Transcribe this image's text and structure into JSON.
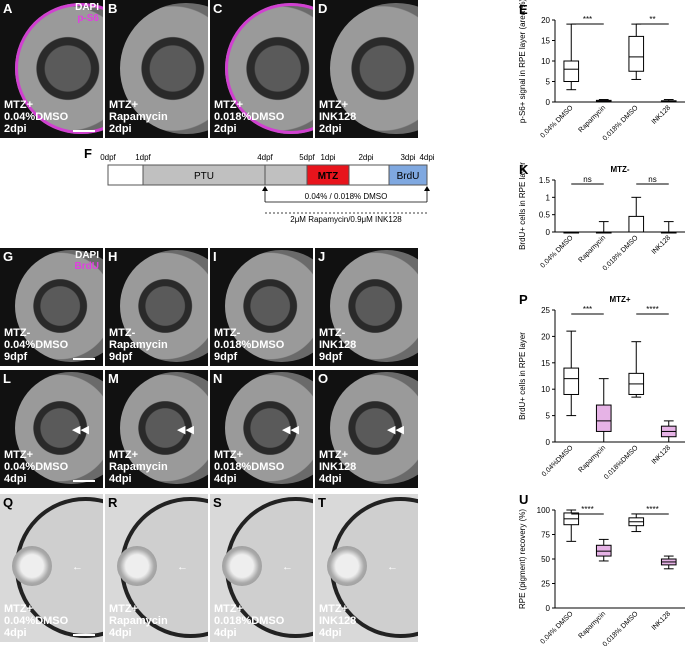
{
  "rows": {
    "top": [
      {
        "letter": "A",
        "caption": "MTZ+\n0.04%DMSO\n2dpi",
        "stain": [
          "DAPI",
          "p-S6"
        ]
      },
      {
        "letter": "B",
        "caption": "MTZ+\nRapamycin\n2dpi"
      },
      {
        "letter": "C",
        "caption": "MTZ+\n0.018%DMSO\n2dpi"
      },
      {
        "letter": "D",
        "caption": "MTZ+\nINK128\n2dpi"
      }
    ],
    "g": [
      {
        "letter": "G",
        "caption": "MTZ-\n0.04%DMSO\n9dpf",
        "stain": [
          "DAPI",
          "BrdU"
        ]
      },
      {
        "letter": "H",
        "caption": "MTZ-\nRapamycin\n9dpf"
      },
      {
        "letter": "I",
        "caption": "MTZ-\n0.018%DMSO\n9dpf"
      },
      {
        "letter": "J",
        "caption": "MTZ-\nINK128\n9dpf"
      }
    ],
    "l": [
      {
        "letter": "L",
        "caption": "MTZ+\n0.04%DMSO\n4dpi"
      },
      {
        "letter": "M",
        "caption": "MTZ+\nRapamycin\n4dpi"
      },
      {
        "letter": "N",
        "caption": "MTZ+\n0.018%DMSO\n4dpi"
      },
      {
        "letter": "O",
        "caption": "MTZ+\nINK128\n4dpi"
      }
    ],
    "q": [
      {
        "letter": "Q",
        "caption": "MTZ+\n0.04%DMSO\n4dpi"
      },
      {
        "letter": "R",
        "caption": "MTZ+\nRapamycin\n4dpi"
      },
      {
        "letter": "S",
        "caption": "MTZ+\n0.018%DMSO\n4dpi"
      },
      {
        "letter": "T",
        "caption": "MTZ+\nINK128\n4dpi"
      }
    ]
  },
  "timeline": {
    "letter": "F",
    "ticks": [
      "0dpf",
      "1dpf",
      "4dpf",
      "5dpf",
      "1dpi",
      "2dpi",
      "3dpi",
      "4dpi"
    ],
    "ptu": "PTU",
    "mtz": "MTZ",
    "brdu": "BrdU",
    "line1": "0.04% / 0.018% DMSO",
    "line2": "2μM Rapamycin/0.9μM INK128"
  },
  "chart_data": [
    {
      "letter": "E",
      "type": "box",
      "ylabel": "p-S6+ signal in RPE layer (area %)",
      "ylim": [
        0,
        20
      ],
      "yticks": [
        0,
        5,
        10,
        15,
        20
      ],
      "categories": [
        "0.04% DMSO",
        "Rapamycin",
        "0.018% DMSO",
        "INK128"
      ],
      "boxes": [
        [
          3,
          5,
          8,
          10,
          19
        ],
        [
          0,
          0.1,
          0.2,
          0.4,
          0.6
        ],
        [
          5.5,
          7.5,
          11,
          16,
          19
        ],
        [
          0,
          0.1,
          0.2,
          0.3,
          0.6
        ]
      ],
      "colors": [
        "#ffffff",
        "#e6b3e6",
        "#ffffff",
        "#e6b3e6"
      ],
      "sig": [
        {
          "from": 0,
          "to": 1,
          "label": "***"
        },
        {
          "from": 2,
          "to": 3,
          "label": "**"
        }
      ]
    },
    {
      "letter": "K",
      "type": "box",
      "title": "MTZ-",
      "ylabel": "BrdU+ cells in RPE layer",
      "ylim": [
        0,
        1.5
      ],
      "yticks": [
        0,
        0.5,
        1.0,
        1.5
      ],
      "categories": [
        "0.04% DMSO",
        "Rapamycin",
        "0.018% DMSO",
        "INK128"
      ],
      "boxes": [
        [
          0,
          0,
          0,
          0,
          0
        ],
        [
          0,
          0,
          0,
          0,
          0.3
        ],
        [
          0,
          0,
          0,
          0.45,
          1.0
        ],
        [
          0,
          0,
          0,
          0,
          0.3
        ]
      ],
      "colors": [
        "#ffffff",
        "#e6b3e6",
        "#ffffff",
        "#e6b3e6"
      ],
      "sig": [
        {
          "from": 0,
          "to": 1,
          "label": "ns"
        },
        {
          "from": 2,
          "to": 3,
          "label": "ns"
        }
      ]
    },
    {
      "letter": "P",
      "type": "box",
      "title": "MTZ+",
      "ylabel": "BrdU+ cells in RPE layer",
      "ylim": [
        0,
        25
      ],
      "yticks": [
        0,
        5,
        10,
        15,
        20,
        25
      ],
      "categories": [
        "0.04%DMSO",
        "Rapamycin",
        "0.018%DMSO",
        "INK128"
      ],
      "boxes": [
        [
          5,
          9,
          12,
          14,
          21
        ],
        [
          0,
          2,
          4,
          7,
          12
        ],
        [
          8.5,
          9,
          11,
          13,
          19
        ],
        [
          0,
          1,
          2,
          3,
          4
        ]
      ],
      "colors": [
        "#ffffff",
        "#e6b3e6",
        "#ffffff",
        "#e6b3e6"
      ],
      "sig": [
        {
          "from": 0,
          "to": 1,
          "label": "***"
        },
        {
          "from": 2,
          "to": 3,
          "label": "****"
        }
      ]
    },
    {
      "letter": "U",
      "type": "box",
      "ylabel": "RPE (pigment) recovery (%)",
      "ylim": [
        0,
        100
      ],
      "yticks": [
        0,
        25,
        50,
        75,
        100
      ],
      "categories": [
        "0.04% DMSO",
        "Rapamycin",
        "0.018% DMSO",
        "INK128"
      ],
      "boxes": [
        [
          68,
          85,
          91,
          97,
          100
        ],
        [
          48,
          53,
          58,
          64,
          70
        ],
        [
          78,
          84,
          88,
          92,
          96
        ],
        [
          40,
          44,
          47,
          50,
          53
        ]
      ],
      "colors": [
        "#ffffff",
        "#e6b3e6",
        "#ffffff",
        "#e6b3e6"
      ],
      "sig": [
        {
          "from": 0,
          "to": 1,
          "label": "****"
        },
        {
          "from": 2,
          "to": 3,
          "label": "****"
        }
      ]
    }
  ]
}
